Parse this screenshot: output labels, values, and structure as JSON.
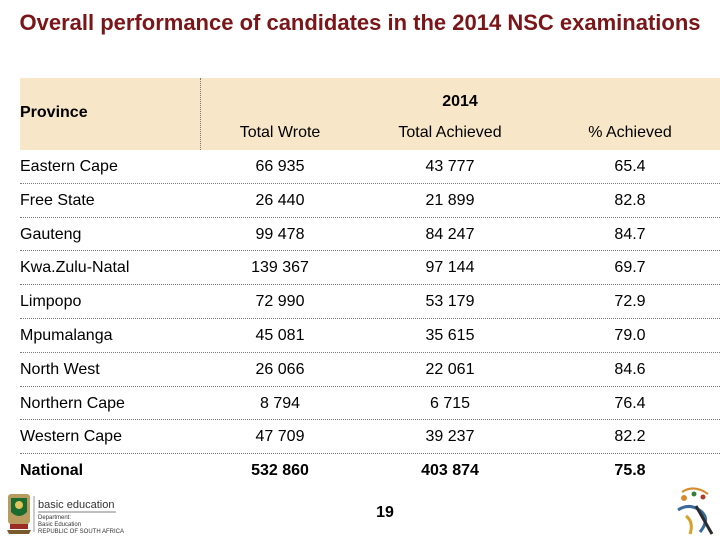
{
  "slide": {
    "title": "Overall performance of candidates in the 2014 NSC examinations",
    "page_number": "19"
  },
  "table": {
    "province_header": "Province",
    "year_header": "2014",
    "columns": [
      "Total Wrote",
      "Total Achieved",
      "% Achieved"
    ],
    "rows": [
      {
        "province": "Eastern Cape",
        "wrote": "66 935",
        "achieved": "43 777",
        "pct": "65.4"
      },
      {
        "province": "Free State",
        "wrote": "26 440",
        "achieved": "21 899",
        "pct": "82.8"
      },
      {
        "province": "Gauteng",
        "wrote": "99 478",
        "achieved": "84 247",
        "pct": "84.7"
      },
      {
        "province": "Kwa.Zulu-Natal",
        "wrote": "139 367",
        "achieved": "97 144",
        "pct": "69.7"
      },
      {
        "province": "Limpopo",
        "wrote": "72 990",
        "achieved": "53 179",
        "pct": "72.9"
      },
      {
        "province": "Mpumalanga",
        "wrote": "45 081",
        "achieved": "35 615",
        "pct": "79.0"
      },
      {
        "province": "North West",
        "wrote": "26 066",
        "achieved": "22 061",
        "pct": "84.6"
      },
      {
        "province": "Northern Cape",
        "wrote": "8 794",
        "achieved": "6 715",
        "pct": "76.4"
      },
      {
        "province": "Western Cape",
        "wrote": "47 709",
        "achieved": "39 237",
        "pct": "82.2"
      },
      {
        "province": "National",
        "wrote": "532 860",
        "achieved": "403 874",
        "pct": "75.8"
      }
    ]
  },
  "footer": {
    "logo_main": "basic education",
    "logo_lines": [
      "Department:",
      "Basic Education",
      "REPUBLIC OF SOUTH AFRICA"
    ]
  },
  "colors": {
    "title": "#7a1518",
    "header_bg": "#f7e6c7"
  }
}
